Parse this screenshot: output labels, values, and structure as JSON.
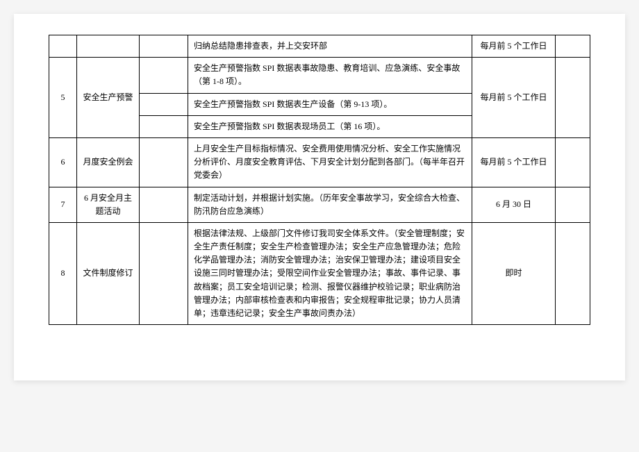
{
  "rows": [
    {
      "num": "",
      "name": "",
      "desc": "归纳总结隐患排查表，并上交安环部",
      "time": "每月前 5 个工作日"
    },
    {
      "num": "5",
      "name": "安全生产预警",
      "subrows": [
        "安全生产预警指数 SPI 数据表事故隐患、教育培训、应急演练、安全事故（第 1-8 项）。",
        "安全生产预警指数 SPI 数据表生产设备（第 9-13 项）。",
        "安全生产预警指数 SPI 数据表现场员工（第 16 项）。"
      ],
      "time": "每月前 5 个工作日"
    },
    {
      "num": "6",
      "name": "月度安全例会",
      "desc": "上月安全生产目标指标情况、安全费用使用情况分析、安全工作实施情况分析评价、月度安全教育评估、下月安全计划分配到各部门。（每半年召开党委会）",
      "time": "每月前 5 个工作日"
    },
    {
      "num": "7",
      "name": "6 月安全月主题活动",
      "desc": "制定活动计划，并根据计划实施。（历年安全事故学习，安全综合大检查、防汛防台应急演练）",
      "time": "6 月 30 日"
    },
    {
      "num": "8",
      "name": "文件制度修订",
      "desc": "根据法律法规、上级部门文件修订我司安全体系文件。（安全管理制度；安全生产责任制度；安全生产检查管理办法；安全生产应急管理办法；危险化学品管理办法；消防安全管理办法；治安保卫管理办法；建设项目安全设施三同时管理办法；受限空间作业安全管理办法；事故、事件记录、事故档案；员工安全培训记录；检测、报警仪器维护校验记录；职业病防治管理办法；内部审核检查表和内审报告；安全规程审批记录；协力人员清单；违章违纪记录；安全生产事故问责办法）",
      "time": "即时"
    }
  ]
}
